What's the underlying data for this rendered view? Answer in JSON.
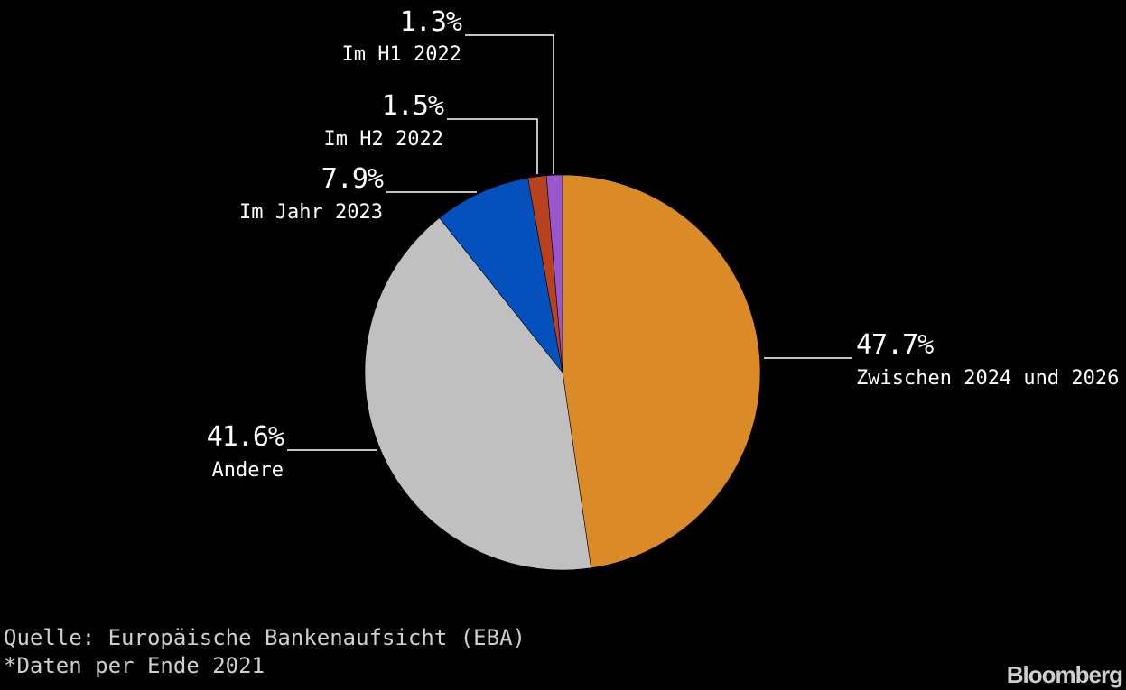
{
  "chart_data": {
    "type": "pie",
    "start_angle_deg": 0,
    "direction": "clockwise",
    "slices": [
      {
        "label": "Zwischen 2024 und 2026",
        "value": 47.7,
        "display": "47.7%",
        "color": "#DA8A26"
      },
      {
        "label": "Andere",
        "value": 41.6,
        "display": "41.6%",
        "color": "#C0C0C0"
      },
      {
        "label": "Im Jahr 2023",
        "value": 7.9,
        "display": "7.9%",
        "color": "#0451BE"
      },
      {
        "label": "Im H2 2022",
        "value": 1.5,
        "display": "1.5%",
        "color": "#B9421E"
      },
      {
        "label": "Im H1 2022",
        "value": 1.3,
        "display": "1.3%",
        "color": "#9A56CC"
      }
    ]
  },
  "footer": {
    "source": "Quelle: Europäische Bankenaufsicht (EBA)",
    "note": "*Daten per Ende 2021",
    "brand": "Bloomberg"
  }
}
